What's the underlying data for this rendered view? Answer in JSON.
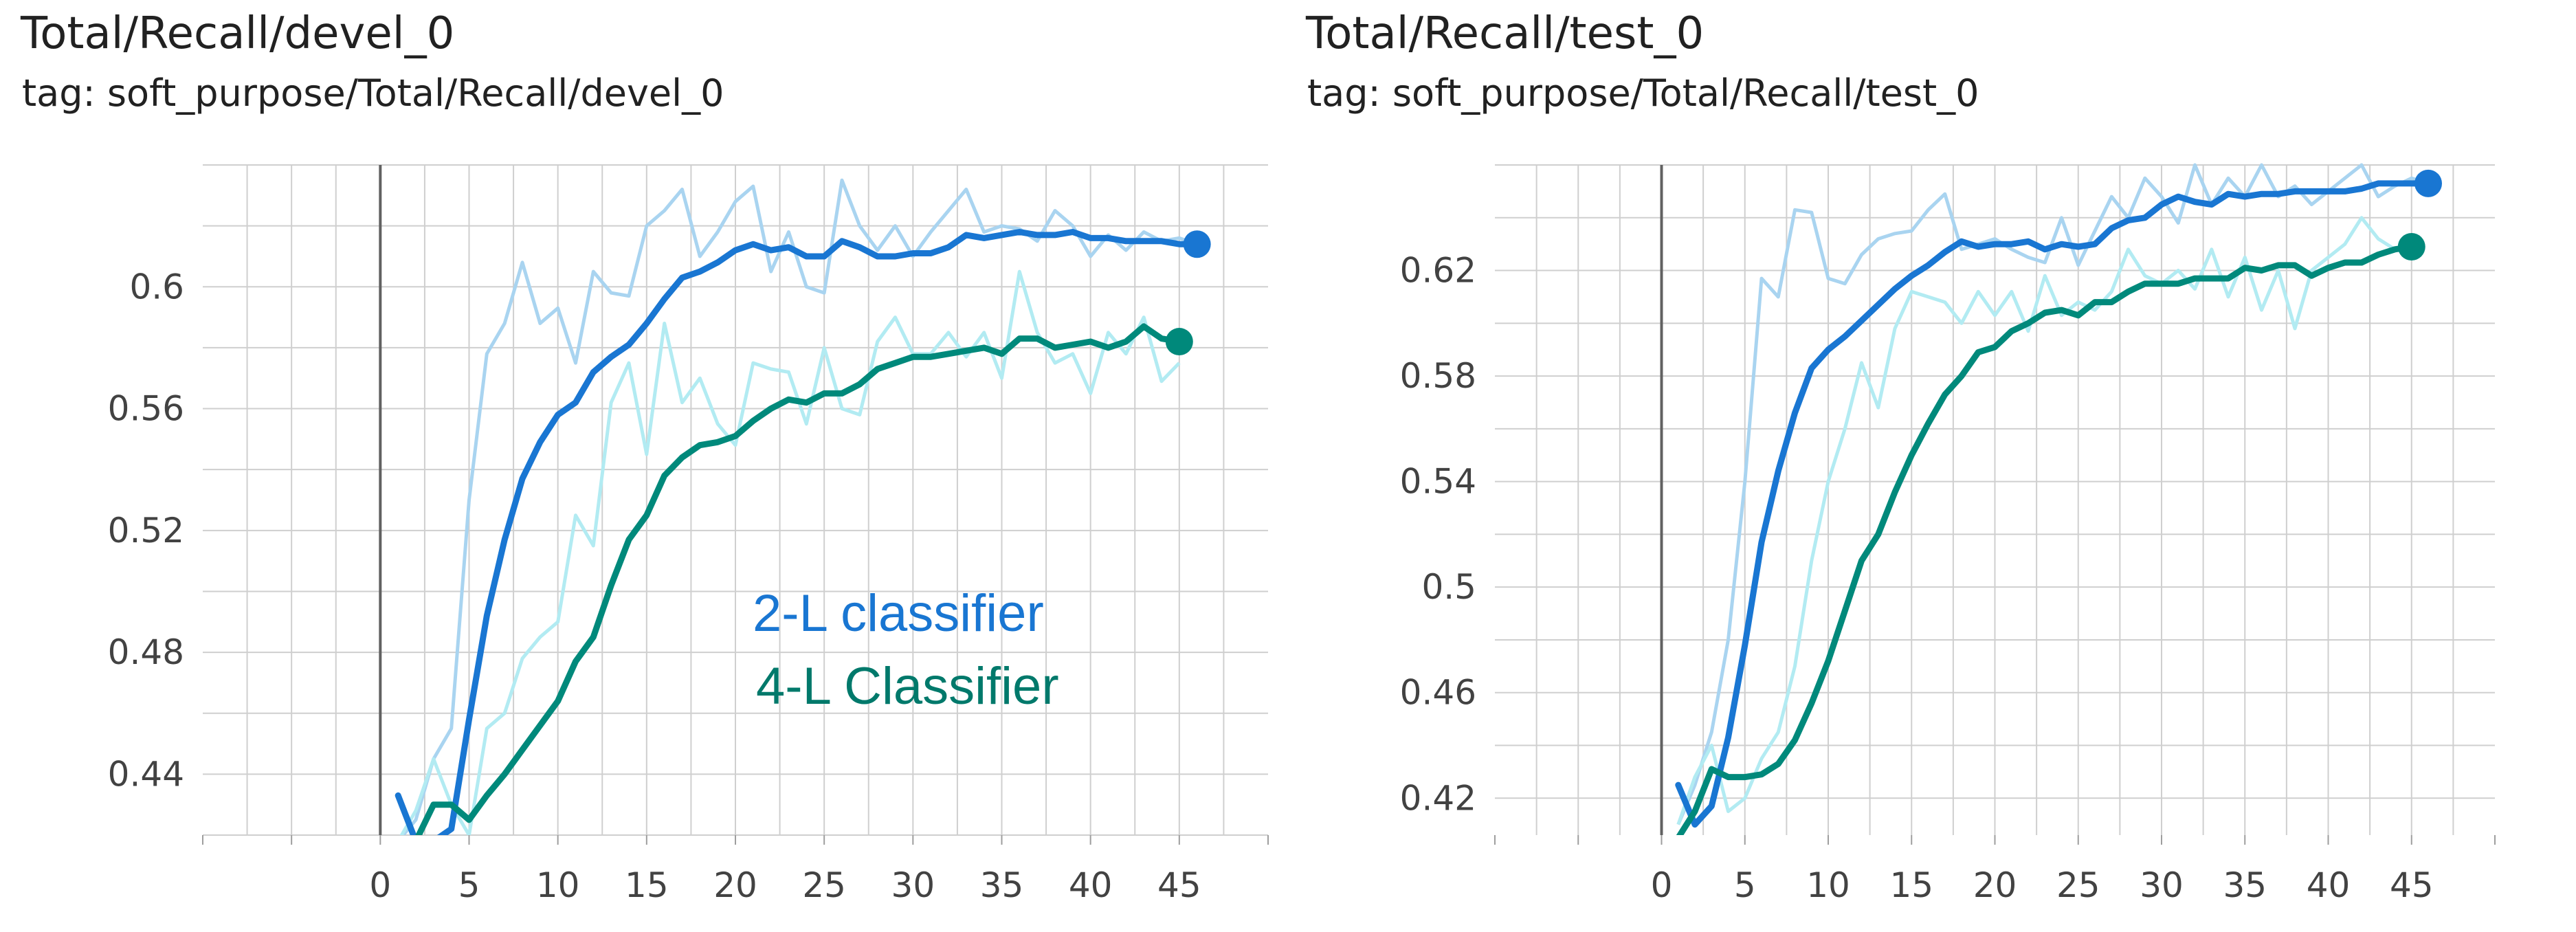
{
  "panels": [
    {
      "title": "Total/Recall/devel_0",
      "tag": "tag: soft_purpose/Total/Recall/devel_0"
    },
    {
      "title": "Total/Recall/test_0",
      "tag": "tag: soft_purpose/Total/Recall/test_0"
    }
  ],
  "legend": {
    "items": [
      {
        "label": "2-L classifier",
        "color": "#1976d2"
      },
      {
        "label": "4-L Classifier",
        "color": "#00796b"
      }
    ]
  },
  "chart_data": [
    {
      "type": "line",
      "title": "Total/Recall/devel_0",
      "xlim": [
        -10,
        50
      ],
      "ylim": [
        0.42,
        0.64
      ],
      "xticks": [
        0,
        5,
        10,
        15,
        20,
        25,
        30,
        35,
        40,
        45
      ],
      "xtick_labels": [
        "0",
        "5",
        "10",
        "15",
        "20",
        "25",
        "30",
        "35",
        "40",
        "45"
      ],
      "yticks": [
        0.44,
        0.48,
        0.52,
        0.56,
        0.6
      ],
      "ytick_labels": [
        "0.44",
        "0.48",
        "0.52",
        "0.56",
        "0.6"
      ],
      "grid": true,
      "series": [
        {
          "name": "2-L classifier",
          "color": "#1976d2",
          "raw_color": "#a9d4f0",
          "x": [
            1,
            2,
            3,
            4,
            5,
            6,
            7,
            8,
            9,
            10,
            11,
            12,
            13,
            14,
            15,
            16,
            17,
            18,
            19,
            20,
            21,
            22,
            23,
            24,
            25,
            26,
            27,
            28,
            29,
            30,
            31,
            32,
            33,
            34,
            35,
            36,
            37,
            38,
            39,
            40,
            41,
            42,
            43,
            44,
            45,
            46
          ],
          "smoothed": [
            0.433,
            0.418,
            0.418,
            0.422,
            0.458,
            0.492,
            0.517,
            0.537,
            0.549,
            0.558,
            0.562,
            0.572,
            0.577,
            0.581,
            0.588,
            0.596,
            0.603,
            0.605,
            0.608,
            0.612,
            0.614,
            0.612,
            0.613,
            0.61,
            0.61,
            0.615,
            0.613,
            0.61,
            0.61,
            0.611,
            0.611,
            0.613,
            0.617,
            0.616,
            0.617,
            0.618,
            0.617,
            0.617,
            0.618,
            0.616,
            0.616,
            0.615,
            0.615,
            0.615,
            0.614,
            0.614
          ],
          "raw": [
            0.418,
            0.425,
            0.445,
            0.455,
            0.53,
            0.578,
            0.588,
            0.608,
            0.588,
            0.593,
            0.575,
            0.605,
            0.598,
            0.597,
            0.62,
            0.625,
            0.632,
            0.61,
            0.618,
            0.628,
            0.633,
            0.605,
            0.618,
            0.6,
            0.598,
            0.635,
            0.62,
            0.612,
            0.62,
            0.61,
            0.618,
            0.625,
            0.632,
            0.618,
            0.62,
            0.619,
            0.615,
            0.625,
            0.62,
            0.61,
            0.617,
            0.612,
            0.618,
            0.615,
            0.616,
            0.614
          ]
        },
        {
          "name": "4-L Classifier",
          "color": "#00897b",
          "raw_color": "#b2ebf2",
          "x": [
            1,
            2,
            3,
            4,
            5,
            6,
            7,
            8,
            9,
            10,
            11,
            12,
            13,
            14,
            15,
            16,
            17,
            18,
            19,
            20,
            21,
            22,
            23,
            24,
            25,
            26,
            27,
            28,
            29,
            30,
            31,
            32,
            33,
            34,
            35,
            36,
            37,
            38,
            39,
            40,
            41,
            42,
            43,
            44,
            45
          ],
          "smoothed": [
            0.418,
            0.418,
            0.43,
            0.43,
            0.425,
            0.433,
            0.44,
            0.448,
            0.456,
            0.464,
            0.477,
            0.485,
            0.502,
            0.517,
            0.525,
            0.538,
            0.544,
            0.548,
            0.549,
            0.551,
            0.556,
            0.56,
            0.563,
            0.562,
            0.565,
            0.565,
            0.568,
            0.573,
            0.575,
            0.577,
            0.577,
            0.578,
            0.579,
            0.58,
            0.578,
            0.583,
            0.583,
            0.58,
            0.581,
            0.582,
            0.58,
            0.582,
            0.587,
            0.583,
            0.582
          ],
          "raw": [
            0.418,
            0.428,
            0.445,
            0.43,
            0.42,
            0.455,
            0.46,
            0.478,
            0.485,
            0.49,
            0.525,
            0.515,
            0.562,
            0.575,
            0.545,
            0.588,
            0.562,
            0.57,
            0.555,
            0.548,
            0.575,
            0.573,
            0.572,
            0.555,
            0.58,
            0.56,
            0.558,
            0.582,
            0.59,
            0.578,
            0.578,
            0.585,
            0.577,
            0.585,
            0.57,
            0.605,
            0.585,
            0.575,
            0.578,
            0.565,
            0.585,
            0.578,
            0.59,
            0.569,
            0.575
          ]
        }
      ]
    },
    {
      "type": "line",
      "title": "Total/Recall/test_0",
      "xlim": [
        -10,
        50
      ],
      "ylim": [
        0.406,
        0.66
      ],
      "xticks": [
        0,
        5,
        10,
        15,
        20,
        25,
        30,
        35,
        40,
        45
      ],
      "xtick_labels": [
        "0",
        "5",
        "10",
        "15",
        "20",
        "25",
        "30",
        "35",
        "40",
        "45"
      ],
      "yticks": [
        0.42,
        0.46,
        0.5,
        0.54,
        0.58,
        0.62
      ],
      "ytick_labels": [
        "0.42",
        "0.46",
        "0.5",
        "0.54",
        "0.58",
        "0.62"
      ],
      "grid": true,
      "series": [
        {
          "name": "2-L classifier",
          "color": "#1976d2",
          "raw_color": "#a9d4f0",
          "x": [
            1,
            2,
            3,
            4,
            5,
            6,
            7,
            8,
            9,
            10,
            11,
            12,
            13,
            14,
            15,
            16,
            17,
            18,
            19,
            20,
            21,
            22,
            23,
            24,
            25,
            26,
            27,
            28,
            29,
            30,
            31,
            32,
            33,
            34,
            35,
            36,
            37,
            38,
            39,
            40,
            41,
            42,
            43,
            44,
            45,
            46
          ],
          "smoothed": [
            0.425,
            0.41,
            0.417,
            0.443,
            0.478,
            0.517,
            0.544,
            0.566,
            0.583,
            0.59,
            0.595,
            0.601,
            0.607,
            0.613,
            0.618,
            0.622,
            0.627,
            0.631,
            0.629,
            0.63,
            0.63,
            0.631,
            0.628,
            0.63,
            0.629,
            0.63,
            0.636,
            0.639,
            0.64,
            0.645,
            0.648,
            0.646,
            0.645,
            0.649,
            0.648,
            0.649,
            0.649,
            0.65,
            0.65,
            0.65,
            0.65,
            0.651,
            0.653,
            0.653,
            0.653,
            0.653
          ],
          "raw": [
            0.41,
            0.425,
            0.445,
            0.48,
            0.54,
            0.617,
            0.61,
            0.643,
            0.642,
            0.617,
            0.615,
            0.626,
            0.632,
            0.634,
            0.635,
            0.643,
            0.649,
            0.628,
            0.63,
            0.632,
            0.628,
            0.625,
            0.623,
            0.64,
            0.622,
            0.635,
            0.648,
            0.64,
            0.655,
            0.648,
            0.638,
            0.66,
            0.645,
            0.655,
            0.648,
            0.66,
            0.648,
            0.652,
            0.645,
            0.65,
            0.655,
            0.66,
            0.648,
            0.652,
            0.655,
            0.653
          ]
        },
        {
          "name": "4-L Classifier",
          "color": "#00897b",
          "raw_color": "#b2ebf2",
          "x": [
            1,
            2,
            3,
            4,
            5,
            6,
            7,
            8,
            9,
            10,
            11,
            12,
            13,
            14,
            15,
            16,
            17,
            18,
            19,
            20,
            21,
            22,
            23,
            24,
            25,
            26,
            27,
            28,
            29,
            30,
            31,
            32,
            33,
            34,
            35,
            36,
            37,
            38,
            39,
            40,
            41,
            42,
            43,
            44,
            45
          ],
          "smoothed": [
            0.405,
            0.415,
            0.431,
            0.428,
            0.428,
            0.429,
            0.433,
            0.442,
            0.456,
            0.472,
            0.491,
            0.51,
            0.52,
            0.536,
            0.55,
            0.562,
            0.573,
            0.58,
            0.589,
            0.591,
            0.597,
            0.6,
            0.604,
            0.605,
            0.603,
            0.608,
            0.608,
            0.612,
            0.615,
            0.615,
            0.615,
            0.617,
            0.617,
            0.617,
            0.621,
            0.62,
            0.622,
            0.622,
            0.618,
            0.621,
            0.623,
            0.623,
            0.626,
            0.628,
            0.629
          ],
          "raw": [
            0.41,
            0.428,
            0.44,
            0.415,
            0.42,
            0.435,
            0.445,
            0.47,
            0.51,
            0.54,
            0.56,
            0.585,
            0.568,
            0.598,
            0.612,
            0.61,
            0.608,
            0.6,
            0.612,
            0.603,
            0.612,
            0.597,
            0.618,
            0.603,
            0.608,
            0.605,
            0.612,
            0.628,
            0.618,
            0.615,
            0.62,
            0.613,
            0.628,
            0.61,
            0.625,
            0.605,
            0.62,
            0.598,
            0.62,
            0.625,
            0.63,
            0.64,
            0.632,
            0.628,
            0.63
          ]
        }
      ]
    }
  ]
}
